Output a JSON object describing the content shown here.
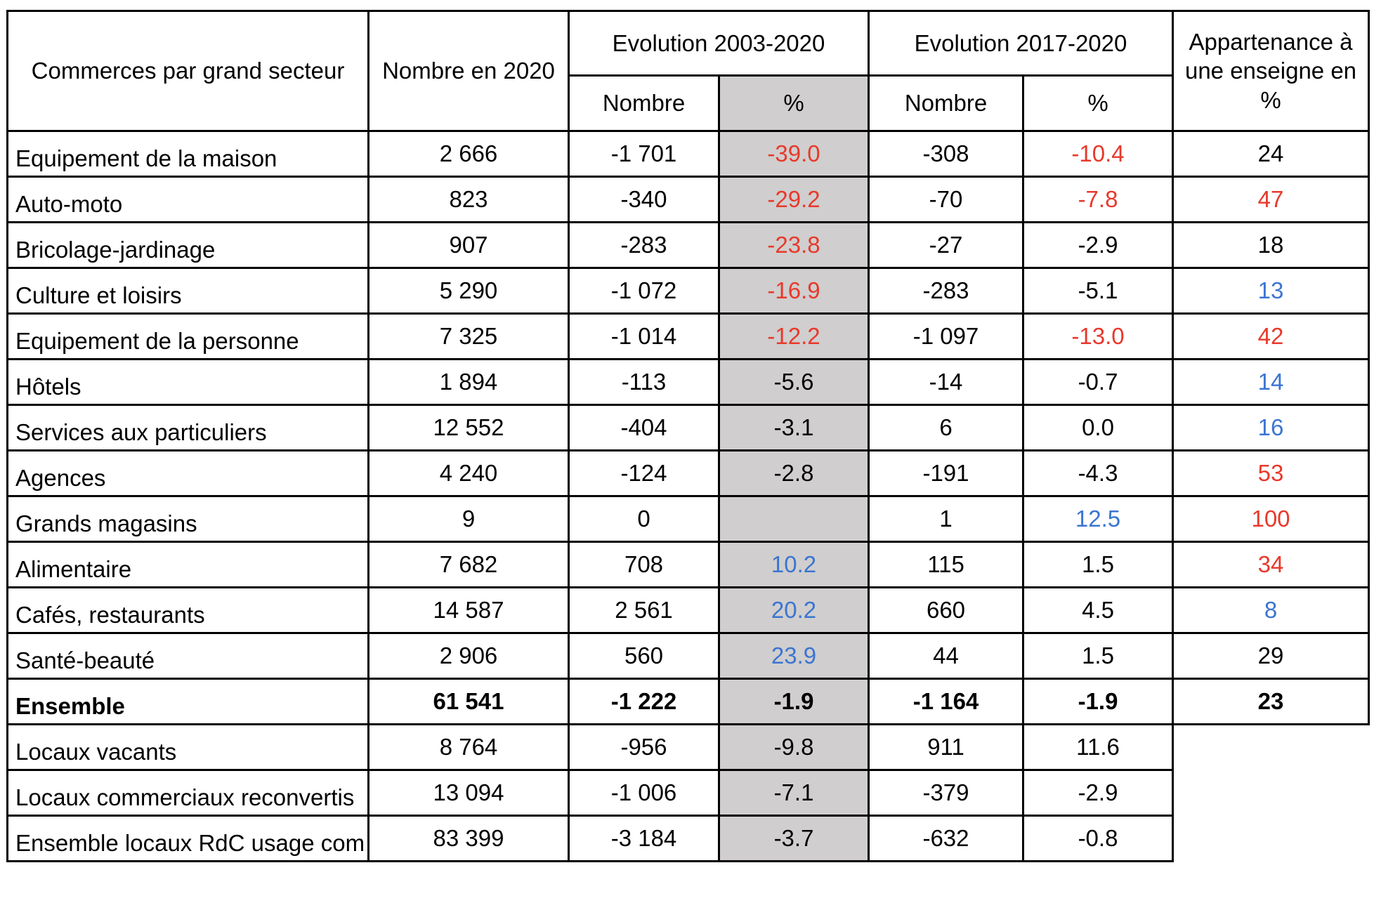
{
  "colors": {
    "negative_red": "#E8392B",
    "positive_blue": "#3B75D1",
    "shaded_column_bg": "#D0CECE",
    "border_black": "#000000"
  },
  "table": {
    "headers": {
      "sector": "Commerces par grand secteur",
      "count_2020": "Nombre en 2020",
      "evolution_2003_2020": "Evolution 2003-2020",
      "evolution_2017_2020": "Evolution 2017-2020",
      "membership": "Appartenance à une enseigne en %",
      "sub_number": "Nombre",
      "sub_percent": "%"
    },
    "rows": [
      {
        "label": "Equipement de la maison",
        "bold": false,
        "cells": [
          {
            "v": "2 666"
          },
          {
            "v": "-1 701"
          },
          {
            "v": "-39.0",
            "c": "red"
          },
          {
            "v": "-308"
          },
          {
            "v": "-10.4",
            "c": "red"
          },
          {
            "v": "24"
          }
        ]
      },
      {
        "label": "Auto-moto",
        "bold": false,
        "cells": [
          {
            "v": "823"
          },
          {
            "v": "-340"
          },
          {
            "v": "-29.2",
            "c": "red"
          },
          {
            "v": "-70"
          },
          {
            "v": "-7.8",
            "c": "red"
          },
          {
            "v": "47",
            "c": "red"
          }
        ]
      },
      {
        "label": "Bricolage-jardinage",
        "bold": false,
        "cells": [
          {
            "v": "907"
          },
          {
            "v": "-283"
          },
          {
            "v": "-23.8",
            "c": "red"
          },
          {
            "v": "-27"
          },
          {
            "v": "-2.9"
          },
          {
            "v": "18"
          }
        ]
      },
      {
        "label": "Culture et loisirs",
        "bold": false,
        "cells": [
          {
            "v": "5 290"
          },
          {
            "v": "-1 072"
          },
          {
            "v": "-16.9",
            "c": "red"
          },
          {
            "v": "-283"
          },
          {
            "v": "-5.1"
          },
          {
            "v": "13",
            "c": "blue"
          }
        ]
      },
      {
        "label": "Equipement de la personne",
        "bold": false,
        "cells": [
          {
            "v": "7 325"
          },
          {
            "v": "-1 014"
          },
          {
            "v": "-12.2",
            "c": "red"
          },
          {
            "v": "-1 097"
          },
          {
            "v": "-13.0",
            "c": "red"
          },
          {
            "v": "42",
            "c": "red"
          }
        ]
      },
      {
        "label": "Hôtels",
        "bold": false,
        "cells": [
          {
            "v": "1 894"
          },
          {
            "v": "-113"
          },
          {
            "v": "-5.6"
          },
          {
            "v": "-14"
          },
          {
            "v": "-0.7"
          },
          {
            "v": "14",
            "c": "blue"
          }
        ]
      },
      {
        "label": "Services aux particuliers",
        "bold": false,
        "cells": [
          {
            "v": "12 552"
          },
          {
            "v": "-404"
          },
          {
            "v": "-3.1"
          },
          {
            "v": "6"
          },
          {
            "v": "0.0"
          },
          {
            "v": "16",
            "c": "blue"
          }
        ]
      },
      {
        "label": "Agences",
        "bold": false,
        "cells": [
          {
            "v": "4 240"
          },
          {
            "v": "-124"
          },
          {
            "v": "-2.8"
          },
          {
            "v": "-191"
          },
          {
            "v": "-4.3"
          },
          {
            "v": "53",
            "c": "red"
          }
        ]
      },
      {
        "label": "Grands magasins",
        "bold": false,
        "cells": [
          {
            "v": "9"
          },
          {
            "v": "0"
          },
          {
            "v": ""
          },
          {
            "v": "1"
          },
          {
            "v": "12.5",
            "c": "blue"
          },
          {
            "v": "100",
            "c": "red"
          }
        ]
      },
      {
        "label": "Alimentaire",
        "bold": false,
        "cells": [
          {
            "v": "7 682"
          },
          {
            "v": "708"
          },
          {
            "v": "10.2",
            "c": "blue"
          },
          {
            "v": "115"
          },
          {
            "v": "1.5"
          },
          {
            "v": "34",
            "c": "red"
          }
        ]
      },
      {
        "label": "Cafés, restaurants",
        "bold": false,
        "cells": [
          {
            "v": "14 587"
          },
          {
            "v": "2 561"
          },
          {
            "v": "20.2",
            "c": "blue"
          },
          {
            "v": "660"
          },
          {
            "v": "4.5"
          },
          {
            "v": "8",
            "c": "blue"
          }
        ]
      },
      {
        "label": "Santé-beauté",
        "bold": false,
        "cells": [
          {
            "v": "2 906"
          },
          {
            "v": "560"
          },
          {
            "v": "23.9",
            "c": "blue"
          },
          {
            "v": "44"
          },
          {
            "v": "1.5"
          },
          {
            "v": "29"
          }
        ]
      },
      {
        "label": "Ensemble",
        "bold": true,
        "cells": [
          {
            "v": "61 541"
          },
          {
            "v": "-1 222"
          },
          {
            "v": "-1.9"
          },
          {
            "v": "-1 164"
          },
          {
            "v": "-1.9"
          },
          {
            "v": "23"
          }
        ]
      },
      {
        "label": "Locaux vacants",
        "bold": false,
        "cells": [
          {
            "v": "8 764"
          },
          {
            "v": "-956"
          },
          {
            "v": "-9.8"
          },
          {
            "v": "911"
          },
          {
            "v": "11.6"
          },
          {
            "ghost": true
          }
        ]
      },
      {
        "label": "Locaux commerciaux reconvertis",
        "bold": false,
        "cells": [
          {
            "v": "13 094"
          },
          {
            "v": "-1 006"
          },
          {
            "v": "-7.1"
          },
          {
            "v": "-379"
          },
          {
            "v": "-2.9"
          },
          {
            "ghost": true
          }
        ]
      },
      {
        "label": "Ensemble locaux RdC usage com",
        "bold": false,
        "cells": [
          {
            "v": "83 399"
          },
          {
            "v": "-3 184"
          },
          {
            "v": "-3.7"
          },
          {
            "v": "-632"
          },
          {
            "v": "-0.8"
          },
          {
            "ghost": true
          }
        ]
      }
    ]
  },
  "chart_data": {
    "type": "table",
    "title": "Commerces par grand secteur",
    "columns": [
      "Commerces par grand secteur",
      "Nombre en 2020",
      "Evolution 2003-2020 Nombre",
      "Evolution 2003-2020 %",
      "Evolution 2017-2020 Nombre",
      "Evolution 2017-2020 %",
      "Appartenance à une enseigne en %"
    ],
    "rows": [
      [
        "Equipement de la maison",
        2666,
        -1701,
        -39.0,
        -308,
        -10.4,
        24
      ],
      [
        "Auto-moto",
        823,
        -340,
        -29.2,
        -70,
        -7.8,
        47
      ],
      [
        "Bricolage-jardinage",
        907,
        -283,
        -23.8,
        -27,
        -2.9,
        18
      ],
      [
        "Culture et loisirs",
        5290,
        -1072,
        -16.9,
        -283,
        -5.1,
        13
      ],
      [
        "Equipement de la personne",
        7325,
        -1014,
        -12.2,
        -1097,
        -13.0,
        42
      ],
      [
        "Hôtels",
        1894,
        -113,
        -5.6,
        -14,
        -0.7,
        14
      ],
      [
        "Services aux particuliers",
        12552,
        -404,
        -3.1,
        6,
        0.0,
        16
      ],
      [
        "Agences",
        4240,
        -124,
        -2.8,
        -191,
        -4.3,
        53
      ],
      [
        "Grands magasins",
        9,
        0,
        null,
        1,
        12.5,
        100
      ],
      [
        "Alimentaire",
        7682,
        708,
        10.2,
        115,
        1.5,
        34
      ],
      [
        "Cafés, restaurants",
        14587,
        2561,
        20.2,
        660,
        4.5,
        8
      ],
      [
        "Santé-beauté",
        2906,
        560,
        23.9,
        44,
        1.5,
        29
      ],
      [
        "Ensemble",
        61541,
        -1222,
        -1.9,
        -1164,
        -1.9,
        23
      ],
      [
        "Locaux vacants",
        8764,
        -956,
        -9.8,
        911,
        11.6,
        null
      ],
      [
        "Locaux commerciaux reconvertis",
        13094,
        -1006,
        -7.1,
        -379,
        -2.9,
        null
      ],
      [
        "Ensemble locaux RdC usage com",
        83399,
        -3184,
        -3.7,
        -632,
        -0.8,
        null
      ]
    ]
  }
}
